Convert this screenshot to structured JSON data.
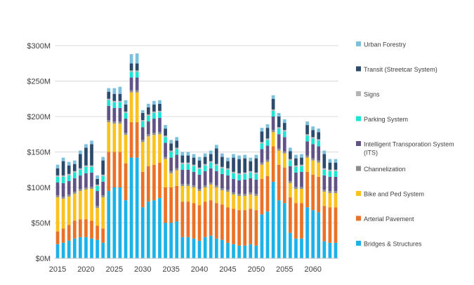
{
  "chart_data": {
    "type": "bar",
    "stacked": true,
    "title": "",
    "xlabel": "",
    "ylabel": "",
    "ylim": [
      0,
      300
    ],
    "yticks": [
      0,
      50,
      100,
      150,
      200,
      250,
      300
    ],
    "ytick_labels": [
      "$0M",
      "$50M",
      "$100M",
      "$150M",
      "$200M",
      "$250M",
      "$300M"
    ],
    "xtick_labels": [
      "2015",
      "2020",
      "2025",
      "2030",
      "2035",
      "2040",
      "2045",
      "2050",
      "2055",
      "2060"
    ],
    "x": [
      2015,
      2016,
      2017,
      2018,
      2019,
      2020,
      2021,
      2022,
      2023,
      2024,
      2025,
      2026,
      2027,
      2028,
      2029,
      2030,
      2031,
      2032,
      2033,
      2034,
      2035,
      2036,
      2037,
      2038,
      2039,
      2040,
      2041,
      2042,
      2043,
      2044,
      2045,
      2046,
      2047,
      2048,
      2049,
      2050,
      2051,
      2052,
      2053,
      2054,
      2055,
      2056,
      2057,
      2058,
      2059,
      2060,
      2061,
      2062,
      2063,
      2064
    ],
    "grid": "horizontal",
    "legend_position": "right",
    "series": [
      {
        "name": "Bridges & Structures",
        "color": "#1ab2e8",
        "values": [
          20,
          22,
          25,
          28,
          30,
          30,
          28,
          26,
          22,
          95,
          100,
          100,
          82,
          142,
          142,
          72,
          80,
          82,
          85,
          50,
          50,
          52,
          30,
          30,
          28,
          25,
          30,
          32,
          28,
          26,
          22,
          20,
          18,
          18,
          20,
          18,
          62,
          66,
          108,
          82,
          78,
          36,
          28,
          28,
          72,
          68,
          65,
          24,
          22,
          22
        ]
      },
      {
        "name": "Arterial Pavement",
        "color": "#ea7125",
        "values": [
          18,
          20,
          22,
          25,
          25,
          25,
          25,
          20,
          20,
          55,
          50,
          50,
          52,
          50,
          50,
          50,
          50,
          50,
          50,
          50,
          50,
          50,
          50,
          50,
          50,
          50,
          50,
          50,
          50,
          50,
          50,
          50,
          50,
          50,
          50,
          50,
          50,
          50,
          50,
          50,
          50,
          50,
          50,
          50,
          50,
          50,
          50,
          50,
          50,
          50
        ]
      },
      {
        "name": "Bike and Ped System",
        "color": "#fbc11d",
        "values": [
          48,
          42,
          40,
          38,
          40,
          42,
          45,
          25,
          44,
          42,
          40,
          40,
          40,
          42,
          42,
          42,
          42,
          42,
          40,
          40,
          20,
          22,
          22,
          22,
          22,
          20,
          20,
          22,
          22,
          20,
          22,
          20,
          20,
          20,
          20,
          20,
          20,
          20,
          20,
          20,
          20,
          20,
          20,
          20,
          20,
          20,
          20,
          20,
          20,
          20
        ]
      },
      {
        "name": "Channelization",
        "color": "#8c8c8c",
        "values": [
          3,
          3,
          3,
          3,
          3,
          3,
          3,
          3,
          3,
          3,
          3,
          3,
          3,
          3,
          3,
          3,
          3,
          3,
          3,
          3,
          3,
          3,
          3,
          3,
          3,
          3,
          3,
          3,
          3,
          3,
          3,
          3,
          3,
          3,
          3,
          3,
          3,
          3,
          3,
          3,
          3,
          3,
          3,
          3,
          3,
          3,
          3,
          3,
          3,
          3
        ]
      },
      {
        "name": "Intelligent Transporation System (ITS)",
        "color": "#625387",
        "values": [
          18,
          19,
          19,
          19,
          19,
          20,
          20,
          21,
          19,
          20,
          19,
          19,
          20,
          18,
          18,
          18,
          18,
          20,
          20,
          20,
          19,
          19,
          20,
          20,
          19,
          20,
          20,
          20,
          20,
          20,
          20,
          19,
          19,
          20,
          20,
          20,
          19,
          20,
          19,
          20,
          20,
          21,
          20,
          21,
          20,
          20,
          20,
          20,
          20,
          20
        ]
      },
      {
        "name": "Parking System",
        "color": "#1ce5d4",
        "values": [
          8,
          9,
          8,
          8,
          8,
          9,
          8,
          7,
          8,
          8,
          8,
          8,
          8,
          8,
          8,
          8,
          8,
          8,
          8,
          8,
          8,
          8,
          8,
          8,
          8,
          8,
          8,
          8,
          8,
          8,
          8,
          8,
          8,
          8,
          8,
          8,
          8,
          8,
          8,
          8,
          8,
          8,
          8,
          8,
          8,
          8,
          8,
          8,
          8,
          8
        ]
      },
      {
        "name": "Signs",
        "color": "#b3b3b3",
        "values": [
          2,
          2,
          2,
          2,
          2,
          2,
          2,
          2,
          2,
          2,
          2,
          2,
          2,
          2,
          2,
          2,
          2,
          2,
          2,
          2,
          2,
          2,
          2,
          2,
          2,
          2,
          2,
          2,
          2,
          2,
          2,
          2,
          2,
          2,
          2,
          2,
          2,
          2,
          2,
          2,
          2,
          2,
          2,
          2,
          2,
          2,
          2,
          2,
          2,
          2
        ]
      },
      {
        "name": "Transit (Streetcar System)",
        "color": "#2c4a6b",
        "values": [
          10,
          20,
          12,
          10,
          20,
          25,
          30,
          8,
          20,
          10,
          10,
          10,
          10,
          10,
          10,
          10,
          10,
          10,
          10,
          10,
          10,
          10,
          10,
          10,
          10,
          10,
          10,
          10,
          22,
          14,
          10,
          20,
          20,
          20,
          14,
          20,
          15,
          15,
          15,
          15,
          10,
          11,
          10,
          10,
          13,
          10,
          10,
          20,
          10,
          10
        ]
      },
      {
        "name": "Urban Forestry",
        "color": "#7bc1dc",
        "values": [
          5,
          5,
          5,
          5,
          5,
          5,
          5,
          5,
          5,
          5,
          8,
          10,
          6,
          13,
          14,
          4,
          5,
          5,
          5,
          5,
          5,
          5,
          5,
          5,
          5,
          5,
          5,
          5,
          5,
          5,
          5,
          5,
          5,
          5,
          5,
          5,
          5,
          5,
          5,
          5,
          5,
          5,
          5,
          5,
          5,
          5,
          5,
          5,
          5,
          5
        ]
      }
    ]
  }
}
